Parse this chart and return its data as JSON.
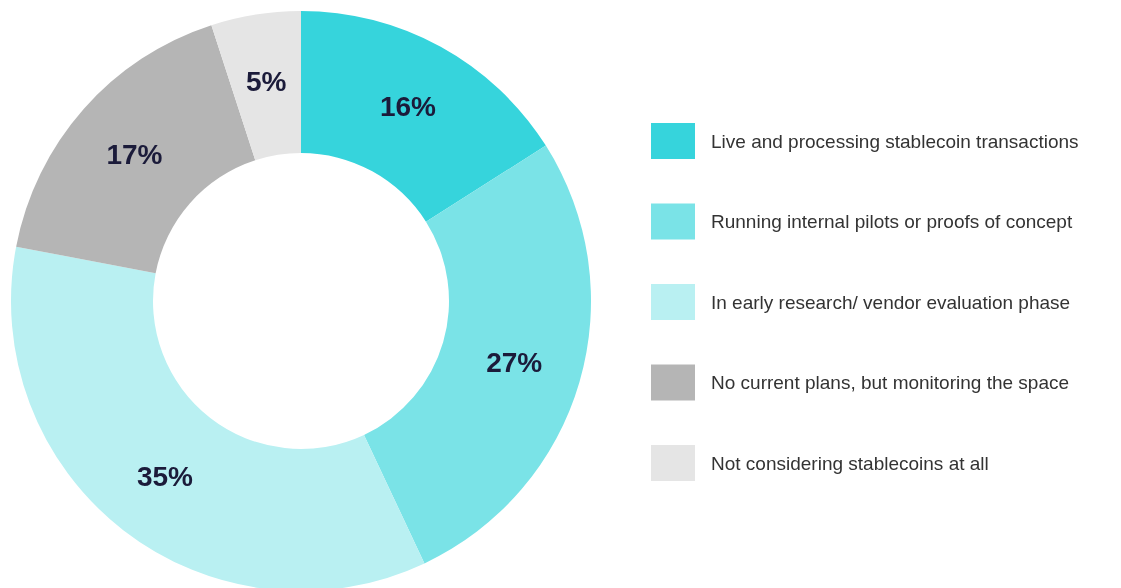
{
  "chart_data": {
    "type": "donut",
    "categories": [
      "Live and processing stablecoin transactions",
      "Running internal pilots or proofs of concept",
      "In early research/ vendor evaluation phase",
      "No current plans, but monitoring the space",
      "Not considering stablecoins at all"
    ],
    "values": [
      16,
      27,
      35,
      17,
      5
    ],
    "colors": [
      "#36d4dc",
      "#7ae3e7",
      "#b9f0f2",
      "#b5b5b5",
      "#e5e5e5"
    ],
    "value_labels": [
      "16%",
      "27%",
      "35%",
      "17%",
      "5%"
    ],
    "legend": "right"
  }
}
